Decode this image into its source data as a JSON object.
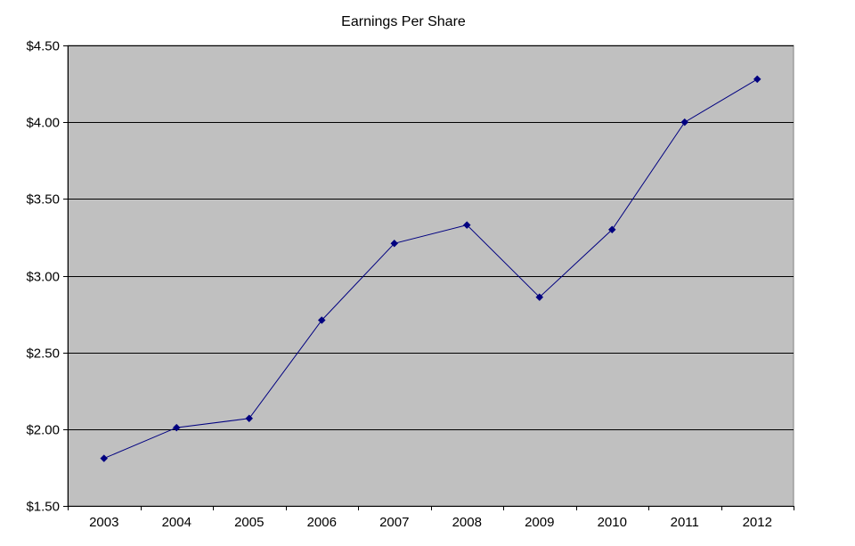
{
  "chart_data": {
    "type": "line",
    "title": "Earnings Per Share",
    "xlabel": "",
    "ylabel": "",
    "categories": [
      "2003",
      "2004",
      "2005",
      "2006",
      "2007",
      "2008",
      "2009",
      "2010",
      "2011",
      "2012"
    ],
    "series": [
      {
        "values": [
          1.81,
          2.01,
          2.07,
          2.71,
          3.21,
          3.33,
          2.86,
          3.3,
          4.0,
          4.28
        ],
        "color": "#000080",
        "marker": "diamond"
      }
    ],
    "ylim": [
      1.5,
      4.5
    ],
    "ytick_values": [
      1.5,
      2.0,
      2.5,
      3.0,
      3.5,
      4.0,
      4.5
    ],
    "ytick_labels": [
      "$1.50",
      "$2.00",
      "$2.50",
      "$3.00",
      "$3.50",
      "$4.00",
      "$4.50"
    ],
    "grid": true,
    "legend": "none",
    "plot_background": "#c0c0c0",
    "gridline_color": "#000000"
  }
}
